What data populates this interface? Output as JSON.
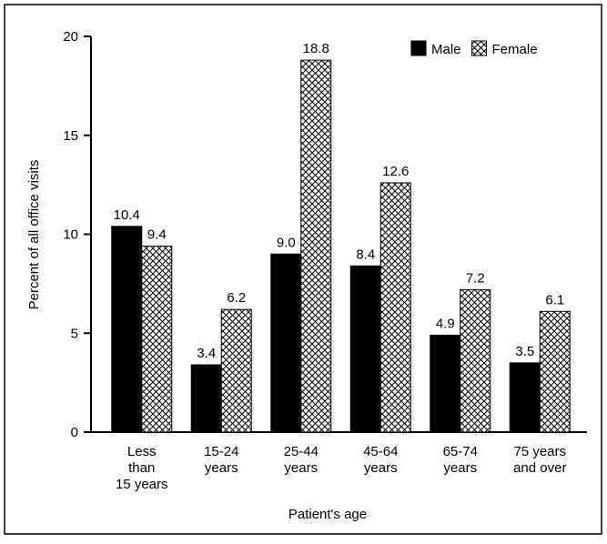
{
  "chart_data": {
    "type": "bar",
    "categories": [
      [
        "Less",
        "than",
        "15 years"
      ],
      [
        "15-24",
        "years"
      ],
      [
        "25-44",
        "years"
      ],
      [
        "45-64",
        "years"
      ],
      [
        "65-74",
        "years"
      ],
      [
        "75 years",
        "and over"
      ]
    ],
    "series": [
      {
        "name": "Male",
        "color": "#000000",
        "values": [
          10.4,
          3.4,
          9.0,
          8.4,
          4.9,
          3.5
        ],
        "value_labels": [
          "10.4",
          "3.4",
          "9.0",
          "8.4",
          "4.9",
          "3.5"
        ]
      },
      {
        "name": "Female",
        "color": "#000000",
        "hatch": "crosshatch",
        "values": [
          9.4,
          6.2,
          18.8,
          12.6,
          7.2,
          6.1
        ],
        "value_labels": [
          "9.4",
          "6.2",
          "18.8",
          "12.6",
          "7.2",
          "6.1"
        ]
      }
    ],
    "ylim": [
      0,
      20
    ],
    "yticks": [
      0,
      5,
      10,
      15,
      20
    ],
    "y_label": "Percent of all office visits",
    "x_label": "Patient's age",
    "legend": "top-right"
  }
}
